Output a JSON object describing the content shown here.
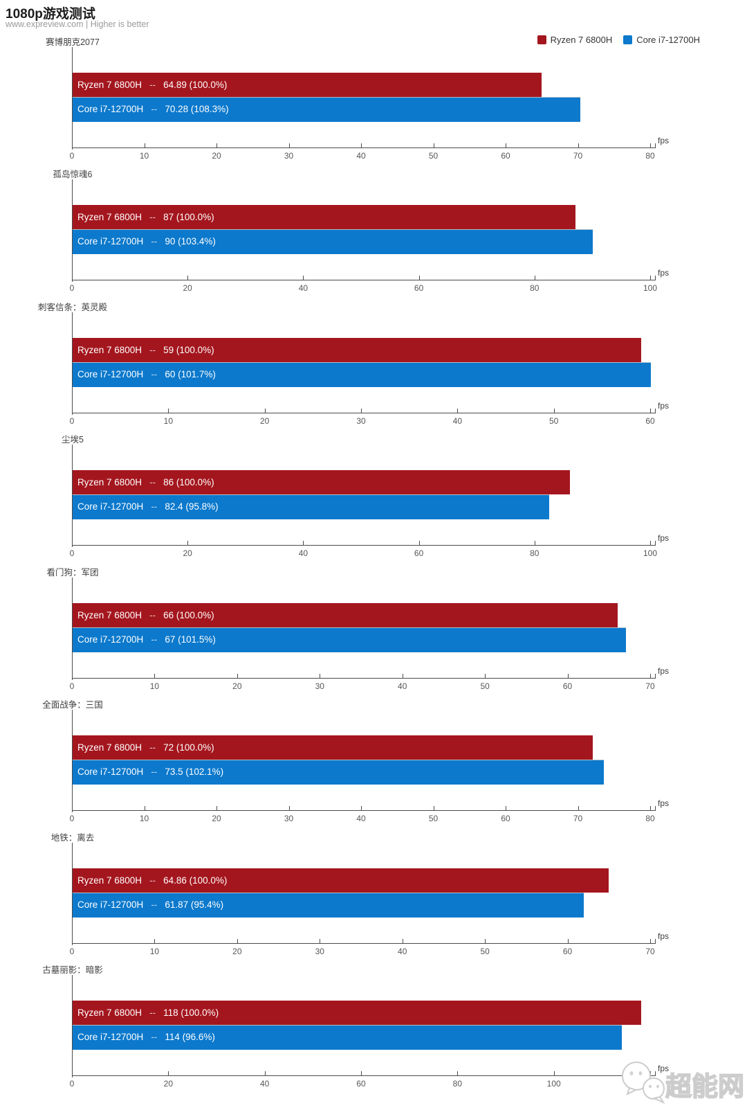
{
  "header": {
    "title": "1080p游戏测试",
    "subtitle": "www.expreview.com | Higher is better"
  },
  "legend": {
    "items": [
      {
        "label": "Ryzen 7 6800H",
        "color": "#a4161e"
      },
      {
        "label": "Core i7-12700H",
        "color": "#0c79cc"
      }
    ]
  },
  "bar_separator": "--",
  "axis_unit": "fps",
  "watermark": {
    "text": "超能网"
  },
  "chart_data": [
    {
      "type": "bar",
      "orientation": "horizontal",
      "title": "赛博朋克2077",
      "xlabel": "fps",
      "xlim": [
        0,
        80
      ],
      "tick_step": 10,
      "grid": false,
      "series": [
        {
          "name": "Ryzen 7 6800H",
          "value": 64.89,
          "display": "64.89 (100.0%)"
        },
        {
          "name": "Core i7-12700H",
          "value": 70.28,
          "display": "70.28 (108.3%)"
        }
      ]
    },
    {
      "type": "bar",
      "orientation": "horizontal",
      "title": "孤岛惊魂6",
      "xlabel": "fps",
      "xlim": [
        0,
        100
      ],
      "tick_step": 20,
      "grid": false,
      "series": [
        {
          "name": "Ryzen 7 6800H",
          "value": 87,
          "display": "87 (100.0%)"
        },
        {
          "name": "Core i7-12700H",
          "value": 90,
          "display": "90 (103.4%)"
        }
      ]
    },
    {
      "type": "bar",
      "orientation": "horizontal",
      "title": "刺客信条：英灵殿",
      "xlabel": "fps",
      "xlim": [
        0,
        60
      ],
      "tick_step": 10,
      "grid": false,
      "series": [
        {
          "name": "Ryzen 7 6800H",
          "value": 59,
          "display": "59 (100.0%)"
        },
        {
          "name": "Core i7-12700H",
          "value": 60,
          "display": "60 (101.7%)"
        }
      ]
    },
    {
      "type": "bar",
      "orientation": "horizontal",
      "title": "尘埃5",
      "xlabel": "fps",
      "xlim": [
        0,
        100
      ],
      "tick_step": 20,
      "grid": false,
      "series": [
        {
          "name": "Ryzen 7 6800H",
          "value": 86,
          "display": "86 (100.0%)"
        },
        {
          "name": "Core i7-12700H",
          "value": 82.4,
          "display": "82.4 (95.8%)"
        }
      ]
    },
    {
      "type": "bar",
      "orientation": "horizontal",
      "title": "看门狗：军团",
      "xlabel": "fps",
      "xlim": [
        0,
        70
      ],
      "tick_step": 10,
      "grid": false,
      "series": [
        {
          "name": "Ryzen 7 6800H",
          "value": 66,
          "display": "66 (100.0%)"
        },
        {
          "name": "Core i7-12700H",
          "value": 67,
          "display": "67 (101.5%)"
        }
      ]
    },
    {
      "type": "bar",
      "orientation": "horizontal",
      "title": "全面战争：三国",
      "xlabel": "fps",
      "xlim": [
        0,
        80
      ],
      "tick_step": 10,
      "grid": false,
      "series": [
        {
          "name": "Ryzen 7 6800H",
          "value": 72,
          "display": "72 (100.0%)"
        },
        {
          "name": "Core i7-12700H",
          "value": 73.5,
          "display": "73.5 (102.1%)"
        }
      ]
    },
    {
      "type": "bar",
      "orientation": "horizontal",
      "title": "地铁：离去",
      "xlabel": "fps",
      "xlim": [
        0,
        70
      ],
      "tick_step": 10,
      "grid": false,
      "series": [
        {
          "name": "Ryzen 7 6800H",
          "value": 64.86,
          "display": "64.86 (100.0%)"
        },
        {
          "name": "Core i7-12700H",
          "value": 61.87,
          "display": "61.87 (95.4%)"
        }
      ]
    },
    {
      "type": "bar",
      "orientation": "horizontal",
      "title": "古墓丽影：暗影",
      "xlabel": "fps",
      "xlim": [
        0,
        120
      ],
      "tick_step": 20,
      "grid": false,
      "hide_max_tick_label": true,
      "series": [
        {
          "name": "Ryzen 7 6800H",
          "value": 118,
          "display": "118 (100.0%)"
        },
        {
          "name": "Core i7-12700H",
          "value": 114,
          "display": "114 (96.6%)"
        }
      ]
    }
  ]
}
